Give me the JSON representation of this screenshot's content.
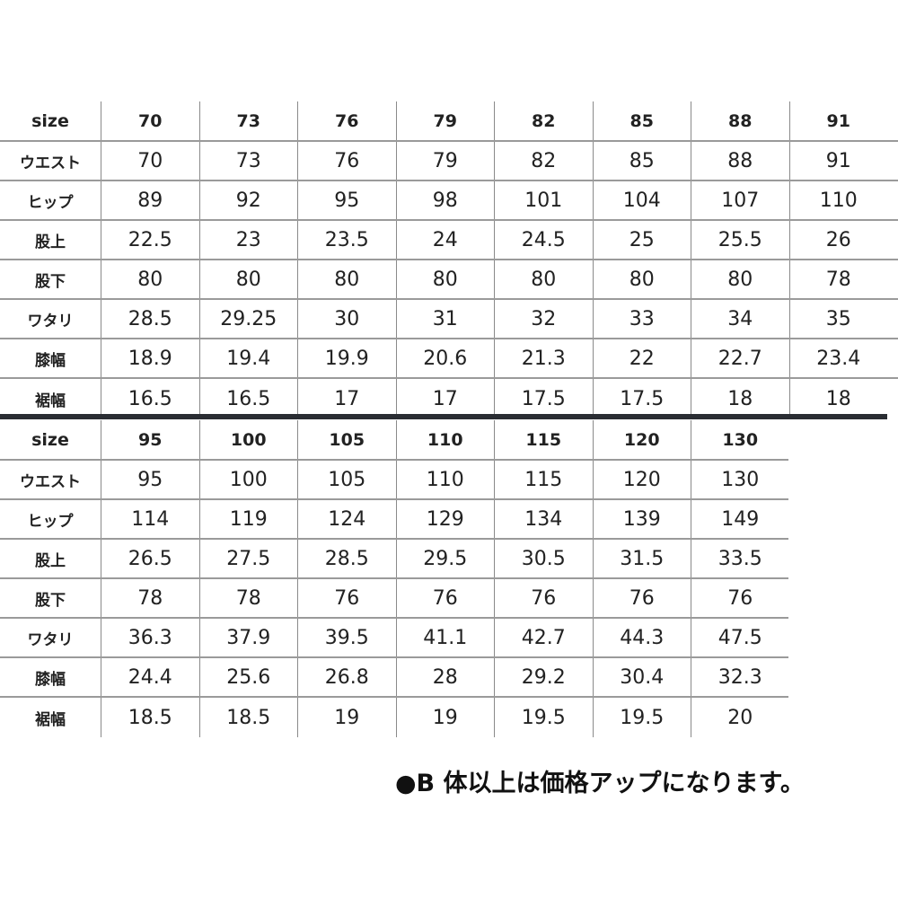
{
  "tables": [
    {
      "header": [
        "size",
        "70",
        "73",
        "76",
        "79",
        "82",
        "85",
        "88",
        "91"
      ],
      "rows": [
        [
          "ウエスト",
          "70",
          "73",
          "76",
          "79",
          "82",
          "85",
          "88",
          "91"
        ],
        [
          "ヒップ",
          "89",
          "92",
          "95",
          "98",
          "101",
          "104",
          "107",
          "110"
        ],
        [
          "股上",
          "22.5",
          "23",
          "23.5",
          "24",
          "24.5",
          "25",
          "25.5",
          "26"
        ],
        [
          "股下",
          "80",
          "80",
          "80",
          "80",
          "80",
          "80",
          "80",
          "78"
        ],
        [
          "ワタリ",
          "28.5",
          "29.25",
          "30",
          "31",
          "32",
          "33",
          "34",
          "35"
        ],
        [
          "膝幅",
          "18.9",
          "19.4",
          "19.9",
          "20.6",
          "21.3",
          "22",
          "22.7",
          "23.4"
        ],
        [
          "裾幅",
          "16.5",
          "16.5",
          "17",
          "17",
          "17.5",
          "17.5",
          "18",
          "18"
        ]
      ]
    },
    {
      "header": [
        "size",
        "95",
        "100",
        "105",
        "110",
        "115",
        "120",
        "130"
      ],
      "rows": [
        [
          "ウエスト",
          "95",
          "100",
          "105",
          "110",
          "115",
          "120",
          "130"
        ],
        [
          "ヒップ",
          "114",
          "119",
          "124",
          "129",
          "134",
          "139",
          "149"
        ],
        [
          "股上",
          "26.5",
          "27.5",
          "28.5",
          "29.5",
          "30.5",
          "31.5",
          "33.5"
        ],
        [
          "股下",
          "78",
          "78",
          "76",
          "76",
          "76",
          "76",
          "76"
        ],
        [
          "ワタリ",
          "36.3",
          "37.9",
          "39.5",
          "41.1",
          "42.7",
          "44.3",
          "47.5"
        ],
        [
          "膝幅",
          "24.4",
          "25.6",
          "26.8",
          "28",
          "29.2",
          "30.4",
          "32.3"
        ],
        [
          "裾幅",
          "18.5",
          "18.5",
          "19",
          "19",
          "19.5",
          "19.5",
          "20"
        ]
      ]
    }
  ],
  "note": "●B 体以上は価格アップになります。"
}
